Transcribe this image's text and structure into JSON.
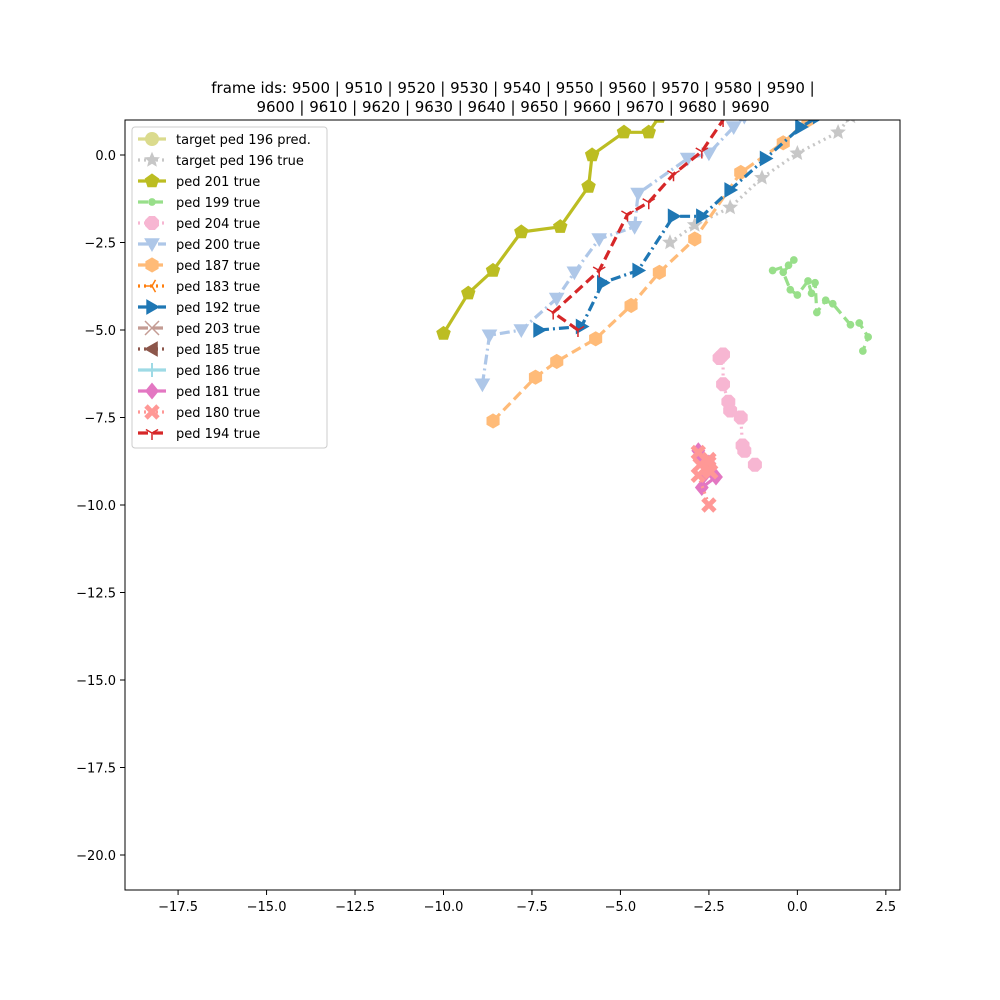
{
  "chart_data": {
    "type": "line",
    "title_lines": [
      "frame ids: 9500 | 9510 | 9520 | 9530 | 9540 | 9550 | 9560 | 9570 | 9580 | 9590 |",
      "9600 | 9610 | 9620 | 9630 | 9640 | 9650 | 9660 | 9670 | 9680 | 9690"
    ],
    "xlabel": "",
    "ylabel": "",
    "xlim": [
      -19.0,
      2.9
    ],
    "ylim": [
      -21.0,
      1.0
    ],
    "xticks": [
      -17.5,
      -15.0,
      -12.5,
      -10.0,
      -7.5,
      -5.0,
      -2.5,
      0.0,
      2.5
    ],
    "xtick_labels": [
      "−17.5",
      "−15.0",
      "−12.5",
      "−10.0",
      "−7.5",
      "−5.0",
      "−2.5",
      "0.0",
      "2.5"
    ],
    "yticks": [
      0.0,
      -2.5,
      -5.0,
      -7.5,
      -10.0,
      -12.5,
      -15.0,
      -17.5,
      -20.0
    ],
    "ytick_labels": [
      "0.0",
      "−2.5",
      "−5.0",
      "−7.5",
      "−10.0",
      "−12.5",
      "−15.0",
      "−17.5",
      "−20.0"
    ],
    "grid": false,
    "legend_position": "upper-left",
    "series": [
      {
        "name": "target ped 196 pred.",
        "color": "#dbdb8d",
        "dash": "dashdot",
        "marker": "circle",
        "x": [],
        "y": []
      },
      {
        "name": "target ped 196 true",
        "color": "#c7c7c7",
        "dash": "dotted",
        "marker": "star",
        "x": [
          -3.6,
          -2.9,
          -1.9,
          -1.0,
          0.0,
          1.15,
          1.5
        ],
        "y": [
          -2.5,
          -2.0,
          -1.5,
          -0.65,
          0.05,
          0.65,
          1.1
        ]
      },
      {
        "name": "ped 201 true",
        "color": "#bcbd22",
        "dash": "solid",
        "marker": "pentagon",
        "x": [
          -10.0,
          -9.3,
          -8.6,
          -7.8,
          -6.7,
          -5.9,
          -5.8,
          -4.9,
          -4.2,
          -3.9
        ],
        "y": [
          -5.1,
          -3.95,
          -3.3,
          -2.2,
          -2.05,
          -0.9,
          0.0,
          0.65,
          0.65,
          1.1
        ]
      },
      {
        "name": "ped 199 true",
        "color": "#98df8a",
        "dash": "dashed",
        "marker": "point",
        "x": [
          -0.7,
          -0.25,
          -0.1,
          -0.4,
          -0.2,
          0.0,
          0.3,
          0.4,
          0.5,
          0.55,
          0.8,
          1.0,
          1.5,
          1.75,
          2.0,
          1.85
        ],
        "y": [
          -3.3,
          -3.15,
          -3.0,
          -3.35,
          -3.85,
          -4.0,
          -3.6,
          -3.95,
          -3.65,
          -4.5,
          -4.15,
          -4.25,
          -4.85,
          -4.8,
          -5.2,
          -5.6
        ]
      },
      {
        "name": "ped 204 true",
        "color": "#f7b6d2",
        "dash": "dotted",
        "marker": "octagon",
        "x": [
          -2.2,
          -2.1,
          -2.1,
          -1.95,
          -1.9,
          -1.6,
          -1.55,
          -1.5,
          -1.2
        ],
        "y": [
          -5.8,
          -5.7,
          -6.55,
          -7.05,
          -7.3,
          -7.5,
          -8.3,
          -8.45,
          -8.85
        ]
      },
      {
        "name": "ped 200 true",
        "color": "#aec7e8",
        "dash": "dashdot",
        "marker": "triangle-down",
        "x": [
          -8.9,
          -8.7,
          -7.8,
          -6.8,
          -6.3,
          -5.6,
          -4.6,
          -4.5,
          -3.1,
          -2.5,
          -1.8,
          -1.5
        ],
        "y": [
          -6.55,
          -5.15,
          -5.0,
          -4.1,
          -3.35,
          -2.4,
          -2.05,
          -1.1,
          -0.1,
          0.05,
          0.8,
          1.1
        ]
      },
      {
        "name": "ped 187 true",
        "color": "#ffbb78",
        "dash": "dashed",
        "marker": "hexagon",
        "x": [
          -8.6,
          -7.4,
          -6.8,
          -5.7,
          -4.7,
          -3.9,
          -2.9,
          -1.6,
          -0.4,
          0.3
        ],
        "y": [
          -7.6,
          -6.35,
          -5.9,
          -5.25,
          -4.3,
          -3.35,
          -2.4,
          -0.5,
          0.35,
          1.0
        ]
      },
      {
        "name": "ped 183 true",
        "color": "#ff7f0e",
        "dash": "dotted",
        "marker": "tri-left",
        "x": [],
        "y": []
      },
      {
        "name": "ped 192 true",
        "color": "#1f77b4",
        "dash": "dashdot",
        "marker": "triangle-right",
        "x": [
          -7.3,
          -6.1,
          -5.5,
          -4.5,
          -3.5,
          -2.7,
          -1.9,
          -0.9,
          0.1,
          0.6
        ],
        "y": [
          -5.0,
          -4.9,
          -3.65,
          -3.3,
          -1.75,
          -1.75,
          -1.0,
          -0.1,
          0.8,
          1.1
        ]
      },
      {
        "name": "ped 203 true",
        "color": "#c49c94",
        "dash": "dashed",
        "marker": "x",
        "x": [],
        "y": []
      },
      {
        "name": "ped 185 true",
        "color": "#8c564b",
        "dash": "dotted",
        "marker": "triangle-left",
        "x": [],
        "y": []
      },
      {
        "name": "ped 186 true",
        "color": "#9edae5",
        "dash": "solid",
        "marker": "plus",
        "x": [],
        "y": []
      },
      {
        "name": "ped 181 true",
        "color": "#e377c2",
        "dash": "solid",
        "marker": "diamond",
        "x": [
          -2.8,
          -2.6,
          -2.3,
          -2.7,
          -2.5,
          -2.75
        ],
        "y": [
          -8.45,
          -9.1,
          -9.2,
          -9.5,
          -8.8,
          -8.7
        ]
      },
      {
        "name": "ped 180 true",
        "color": "#ff9896",
        "dash": "dotted",
        "marker": "x-filled",
        "x": [
          -2.5,
          -2.8,
          -2.45,
          -2.75,
          -2.5,
          -2.8,
          -2.5,
          -2.5
        ],
        "y": [
          -10.0,
          -9.15,
          -9.05,
          -8.85,
          -8.7,
          -8.5,
          -8.8,
          -9.0
        ]
      },
      {
        "name": "ped 194 true",
        "color": "#d62728",
        "dash": "dashed",
        "marker": "tri-down",
        "x": [
          -6.2,
          -6.9,
          -5.6,
          -4.8,
          -4.2,
          -3.5,
          -2.7,
          -2.1
        ],
        "y": [
          -5.0,
          -4.5,
          -3.3,
          -1.7,
          -1.35,
          -0.55,
          0.1,
          1.0
        ]
      }
    ]
  }
}
